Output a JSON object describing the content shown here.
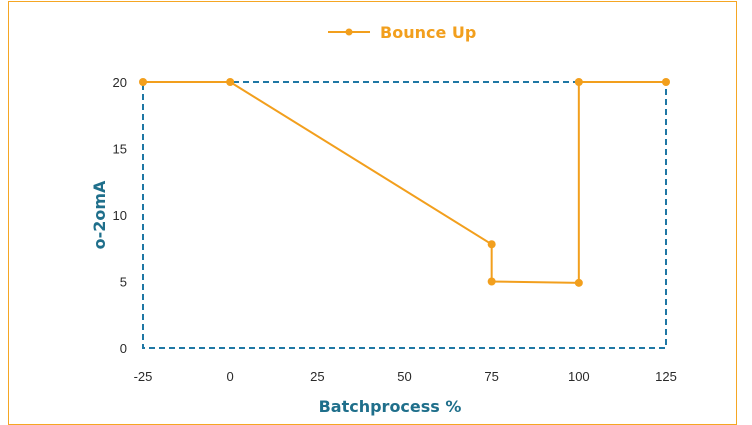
{
  "chart_data": {
    "type": "line",
    "xlabel": "Batchprocess %",
    "ylabel": "o-2omA",
    "xlim": [
      -25,
      125
    ],
    "ylim": [
      0,
      20
    ],
    "x_ticks": [
      "-25",
      "0",
      "25",
      "50",
      "75",
      "100",
      "125"
    ],
    "y_ticks": [
      "0",
      "5",
      "10",
      "15",
      "20"
    ],
    "grid": false,
    "legend_position": "top",
    "plot_border_color": "#1f77a4",
    "series": [
      {
        "name": "Bounce Up",
        "color": "#f29f1d",
        "points": [
          {
            "x": -25,
            "y": 20
          },
          {
            "x": 0,
            "y": 20
          },
          {
            "x": 75,
            "y": 7.8
          },
          {
            "x": 75,
            "y": 5
          },
          {
            "x": 100,
            "y": 4.9
          },
          {
            "x": 100,
            "y": 20
          },
          {
            "x": 125,
            "y": 20
          }
        ]
      }
    ]
  }
}
